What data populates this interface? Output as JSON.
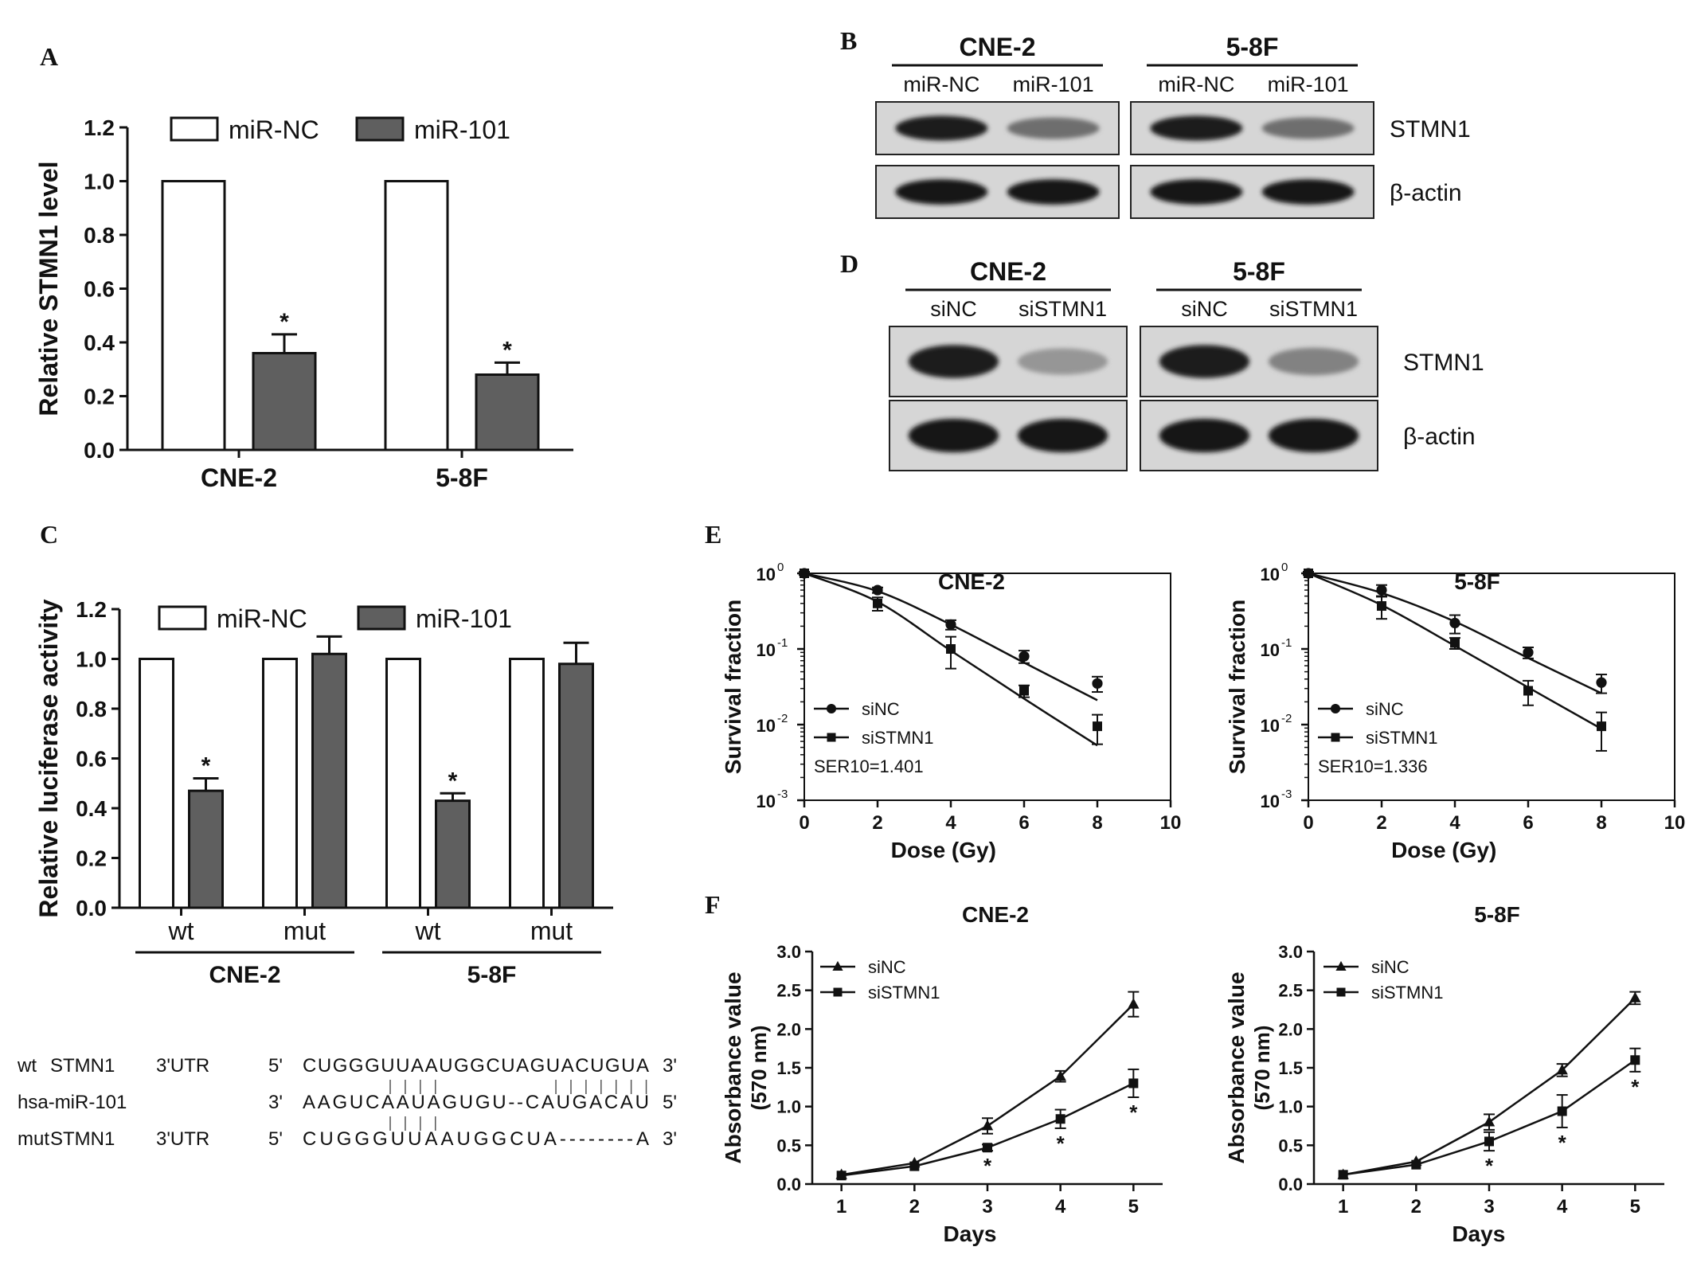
{
  "panel_letters": {
    "a": "A",
    "b": "B",
    "c": "C",
    "d": "D",
    "e": "E",
    "f": "F"
  },
  "chart_data": [
    {
      "id": "A",
      "type": "bar",
      "ylabel": "Relative STMN1 level",
      "xlabel": "",
      "ylim": [
        0,
        1.2
      ],
      "yticks": [
        "0.0",
        "0.2",
        "0.4",
        "0.6",
        "0.8",
        "1.0",
        "1.2"
      ],
      "categories": [
        "CNE-2",
        "5-8F"
      ],
      "series": [
        {
          "name": "miR-NC",
          "color": "#ffffff",
          "values": [
            1.0,
            1.0
          ],
          "errors": [
            0,
            0
          ],
          "sig": [
            "",
            ""
          ]
        },
        {
          "name": "miR-101",
          "color": "#5f5f5f",
          "values": [
            0.36,
            0.28
          ],
          "errors": [
            0.07,
            0.045
          ],
          "sig": [
            "*",
            "*"
          ]
        }
      ],
      "legend": "top"
    },
    {
      "id": "C",
      "type": "bar",
      "ylabel": "Relative luciferase activity",
      "xlabel": "",
      "ylim": [
        0,
        1.2
      ],
      "yticks": [
        "0.0",
        "0.2",
        "0.4",
        "0.6",
        "0.8",
        "1.0",
        "1.2"
      ],
      "categories": [
        "wt",
        "mut",
        "wt",
        "mut"
      ],
      "groups": [
        "CNE-2",
        "5-8F"
      ],
      "series": [
        {
          "name": "miR-NC",
          "color": "#ffffff",
          "values": [
            1.0,
            1.0,
            1.0,
            1.0
          ],
          "errors": [
            0,
            0,
            0,
            0
          ],
          "sig": [
            "",
            "",
            "",
            ""
          ]
        },
        {
          "name": "miR-101",
          "color": "#5f5f5f",
          "values": [
            0.47,
            1.02,
            0.43,
            0.98
          ],
          "errors": [
            0.05,
            0.07,
            0.03,
            0.085
          ],
          "sig": [
            "*",
            "",
            "*",
            ""
          ]
        }
      ],
      "legend": "top"
    },
    {
      "id": "E1",
      "type": "line",
      "title": "CNE-2",
      "xlabel": "Dose (Gy)",
      "ylabel": "Survival fraction",
      "yscale": "log",
      "xlim": [
        0,
        10
      ],
      "ylim": [
        0.001,
        1
      ],
      "xticks": [
        "0",
        "2",
        "4",
        "6",
        "8",
        "10"
      ],
      "yticks": [
        {
          "base": "10",
          "exp": "0"
        },
        {
          "base": "10",
          "exp": "-1"
        },
        {
          "base": "10",
          "exp": "-2"
        },
        {
          "base": "10",
          "exp": "-3"
        }
      ],
      "annotation": "SER10=1.401",
      "series": [
        {
          "name": "siNC",
          "marker": "circle",
          "x": [
            0,
            2,
            4,
            6,
            8
          ],
          "y": [
            1.0,
            0.6,
            0.21,
            0.08,
            0.035
          ],
          "err": [
            0.05,
            0.05,
            0.03,
            0.015,
            0.008
          ],
          "fit": [
            1.0,
            0.58,
            0.21,
            0.066,
            0.021
          ]
        },
        {
          "name": "siSTMN1",
          "marker": "square",
          "x": [
            0,
            2,
            4,
            6,
            8
          ],
          "y": [
            1.0,
            0.4,
            0.1,
            0.028,
            0.0095
          ],
          "err": [
            0.05,
            0.08,
            0.045,
            0.005,
            0.004
          ],
          "fit": [
            1.0,
            0.42,
            0.095,
            0.022,
            0.0053
          ]
        }
      ],
      "legend": "bottom-left"
    },
    {
      "id": "E2",
      "type": "line",
      "title": "5-8F",
      "xlabel": "Dose (Gy)",
      "ylabel": "Survival fraction",
      "yscale": "log",
      "xlim": [
        0,
        10
      ],
      "ylim": [
        0.001,
        1
      ],
      "xticks": [
        "0",
        "2",
        "4",
        "6",
        "8",
        "10"
      ],
      "yticks": [
        {
          "base": "10",
          "exp": "0"
        },
        {
          "base": "10",
          "exp": "-1"
        },
        {
          "base": "10",
          "exp": "-2"
        },
        {
          "base": "10",
          "exp": "-3"
        }
      ],
      "annotation": "SER10=1.336",
      "series": [
        {
          "name": "siNC",
          "marker": "circle",
          "x": [
            0,
            2,
            4,
            6,
            8
          ],
          "y": [
            1.0,
            0.6,
            0.22,
            0.09,
            0.036
          ],
          "err": [
            0.05,
            0.1,
            0.06,
            0.015,
            0.01
          ],
          "fit": [
            1.0,
            0.55,
            0.23,
            0.076,
            0.026
          ]
        },
        {
          "name": "siSTMN1",
          "marker": "square",
          "x": [
            0,
            2,
            4,
            6,
            8
          ],
          "y": [
            1.0,
            0.37,
            0.12,
            0.028,
            0.0095
          ],
          "err": [
            0.05,
            0.12,
            0.02,
            0.01,
            0.005
          ],
          "fit": [
            1.0,
            0.38,
            0.11,
            0.031,
            0.0088
          ]
        }
      ],
      "legend": "bottom-left"
    },
    {
      "id": "F1",
      "type": "line",
      "title": "CNE-2",
      "xlabel": "Days",
      "ylabel": "Absorbance value",
      "ylabel2": "(570 nm)",
      "xlim": [
        0.6,
        5.4
      ],
      "ylim": [
        0,
        3.0
      ],
      "xticks": [
        "1",
        "2",
        "3",
        "4",
        "5"
      ],
      "yticks": [
        "0.0",
        "0.5",
        "1.0",
        "1.5",
        "2.0",
        "2.5",
        "3.0"
      ],
      "series": [
        {
          "name": "siNC",
          "marker": "triangle",
          "x": [
            1,
            2,
            3,
            4,
            5
          ],
          "y": [
            0.12,
            0.27,
            0.75,
            1.39,
            2.32
          ],
          "err": [
            0.01,
            0.02,
            0.1,
            0.07,
            0.16
          ]
        },
        {
          "name": "siSTMN1",
          "marker": "square",
          "x": [
            1,
            2,
            3,
            4,
            5
          ],
          "y": [
            0.11,
            0.23,
            0.47,
            0.84,
            1.3
          ],
          "err": [
            0.01,
            0.02,
            0.04,
            0.12,
            0.18
          ]
        }
      ],
      "sig": [
        {
          "x": 3,
          "label": "*"
        },
        {
          "x": 4,
          "label": "*"
        },
        {
          "x": 5,
          "label": "*"
        }
      ],
      "legend": "top-left"
    },
    {
      "id": "F2",
      "type": "line",
      "title": "5-8F",
      "xlabel": "Days",
      "ylabel": "Absorbance value",
      "ylabel2": "(570 nm)",
      "xlim": [
        0.6,
        5.4
      ],
      "ylim": [
        0,
        3.0
      ],
      "xticks": [
        "1",
        "2",
        "3",
        "4",
        "5"
      ],
      "yticks": [
        "0.0",
        "0.5",
        "1.0",
        "1.5",
        "2.0",
        "2.5",
        "3.0"
      ],
      "series": [
        {
          "name": "siNC",
          "marker": "triangle",
          "x": [
            1,
            2,
            3,
            4,
            5
          ],
          "y": [
            0.12,
            0.29,
            0.8,
            1.47,
            2.4
          ],
          "err": [
            0.01,
            0.02,
            0.1,
            0.08,
            0.08
          ]
        },
        {
          "name": "siSTMN1",
          "marker": "square",
          "x": [
            1,
            2,
            3,
            4,
            5
          ],
          "y": [
            0.12,
            0.25,
            0.55,
            0.94,
            1.6
          ],
          "err": [
            0.01,
            0.02,
            0.12,
            0.21,
            0.15
          ]
        }
      ],
      "sig": [
        {
          "x": 3,
          "label": "*"
        },
        {
          "x": 4,
          "label": "*"
        },
        {
          "x": 5,
          "label": "*"
        }
      ],
      "legend": "top-left"
    }
  ],
  "blot_B": {
    "groups": [
      {
        "name": "CNE-2",
        "lanes": [
          "miR-NC",
          "miR-101"
        ],
        "intensity": [
          [
            0.95,
            0.55
          ],
          [
            1.0,
            1.0
          ]
        ]
      },
      {
        "name": "5-8F",
        "lanes": [
          "miR-NC",
          "miR-101"
        ],
        "intensity": [
          [
            0.95,
            0.55
          ],
          [
            1.0,
            1.0
          ]
        ]
      }
    ],
    "rows": [
      "STMN1",
      "β-actin"
    ]
  },
  "blot_D": {
    "groups": [
      {
        "name": "CNE-2",
        "lanes": [
          "siNC",
          "siSTMN1"
        ],
        "intensity": [
          [
            0.95,
            0.35
          ],
          [
            1.0,
            1.0
          ]
        ]
      },
      {
        "name": "5-8F",
        "lanes": [
          "siNC",
          "siSTMN1"
        ],
        "intensity": [
          [
            0.95,
            0.45
          ],
          [
            1.0,
            1.0
          ]
        ]
      }
    ],
    "rows": [
      "STMN1",
      "β-actin"
    ]
  },
  "sequence": {
    "rows": [
      {
        "label1": "wt",
        "label2": "STMN1",
        "label3": "3'UTR",
        "p5": "5'",
        "seq": "CUGGGUUAAUGGCUAGUACUGUA",
        "p3": "3'"
      },
      {
        "label1": "hsa-miR-101",
        "label2": "",
        "label3": "",
        "p5": "3'",
        "seq": "AAGUCAAUAGUGU--CAUGACAU",
        "p3": "5'"
      },
      {
        "label1": "mut",
        "label2": "STMN1",
        "label3": "3'UTR",
        "p5": "5'",
        "seq": "CUGGGUUAAUGGCUA--------A",
        "p3": "3'"
      }
    ]
  }
}
